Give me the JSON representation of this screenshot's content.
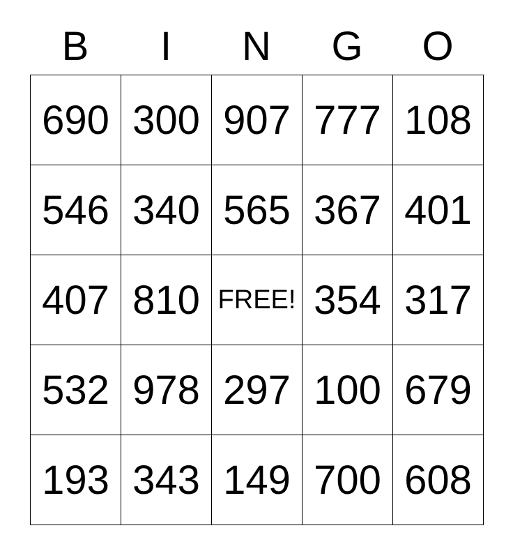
{
  "card": {
    "header_letters": [
      "B",
      "I",
      "N",
      "G",
      "O"
    ],
    "free_label": "FREE!",
    "rows": [
      [
        "690",
        "300",
        "907",
        "777",
        "108"
      ],
      [
        "546",
        "340",
        "565",
        "367",
        "401"
      ],
      [
        "407",
        "810",
        "FREE!",
        "354",
        "317"
      ],
      [
        "532",
        "978",
        "297",
        "100",
        "679"
      ],
      [
        "193",
        "343",
        "149",
        "700",
        "608"
      ]
    ],
    "colors": {
      "background": "#ffffff",
      "text": "#000000",
      "border": "#000000"
    }
  }
}
